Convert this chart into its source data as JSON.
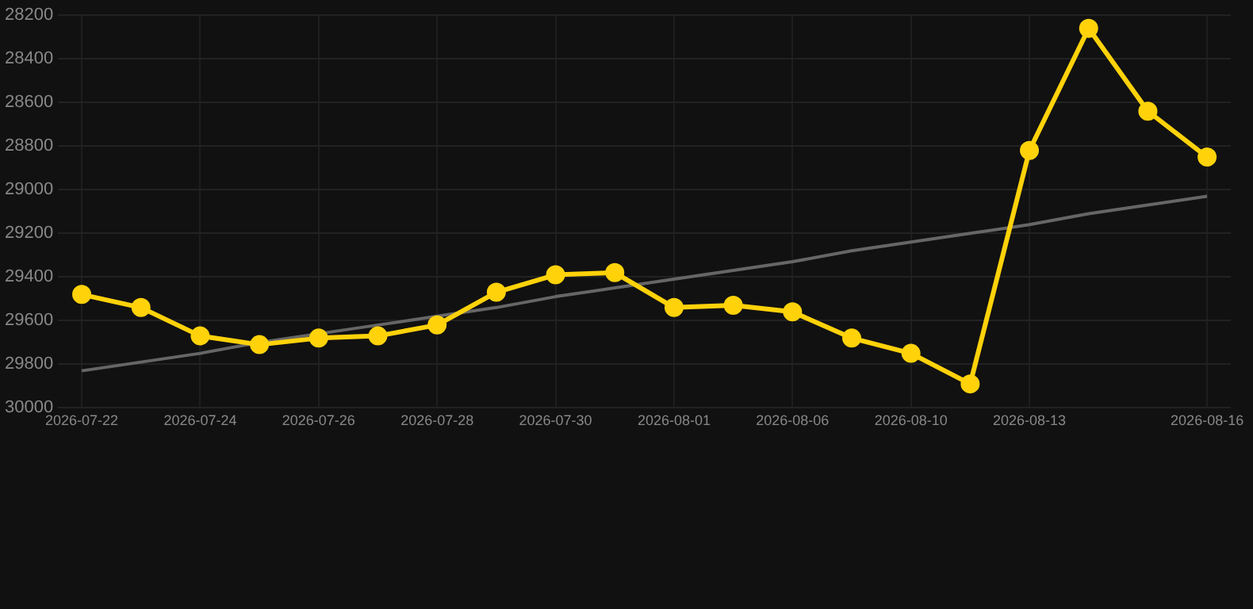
{
  "chart_data": {
    "type": "line",
    "categories": [
      "2026-07-22",
      null,
      "2026-07-24",
      null,
      "2026-07-26",
      null,
      "2026-07-28",
      null,
      "2026-07-30",
      null,
      "2026-08-01",
      null,
      "2026-08-06",
      null,
      "2026-08-10",
      null,
      "2026-08-13",
      null,
      null,
      "2026-08-16"
    ],
    "series": [
      {
        "color": "#ffd20a",
        "values": [
          29480,
          29540,
          29670,
          29710,
          29680,
          29670,
          29620,
          29470,
          29390,
          29380,
          29540,
          29530,
          29560,
          29680,
          29750,
          29890,
          28820,
          28260,
          28640,
          28850
        ]
      },
      {
        "type": "line",
        "color": "#666666",
        "marker": "none",
        "values": [
          29830,
          29790,
          29750,
          29700,
          29660,
          29620,
          29580,
          29540,
          29490,
          29450,
          29410,
          29370,
          29330,
          29280,
          29240,
          29200,
          29160,
          29110,
          29070,
          29030
        ]
      }
    ],
    "ylim": [
      30000,
      28200
    ],
    "yticks": [
      28200,
      28400,
      28600,
      28800,
      29000,
      29200,
      29400,
      29600,
      29800,
      30000
    ],
    "grid": true,
    "marker": "circle",
    "line_style": "solid"
  }
}
